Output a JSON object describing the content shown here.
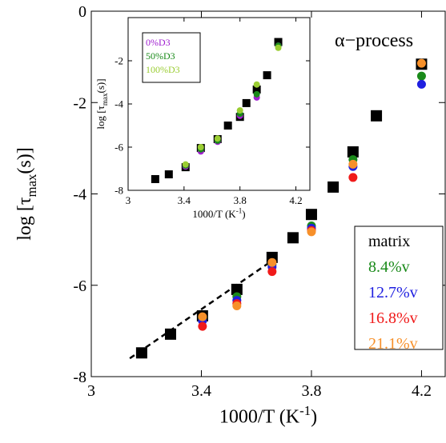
{
  "chart_data": [
    {
      "type": "scatter",
      "xlabel": [
        "1000/T (K",
        "-1",
        ")"
      ],
      "ylabel": [
        "log [τ",
        "max",
        "(s)]"
      ],
      "xlim": [
        3,
        4.286
      ],
      "ylim": [
        -8,
        0
      ],
      "xticks": [
        3,
        3.4,
        3.8,
        4.2
      ],
      "yticks": [
        0,
        -2,
        -4,
        -6,
        -8
      ],
      "annotation": "α−process",
      "legend_title": "matrix",
      "fit_line": {
        "x": [
          3.14,
          3.66
        ],
        "y": [
          -7.6,
          -5.45
        ]
      },
      "series": [
        {
          "name": "matrix",
          "color": "#000000",
          "marker": "square",
          "show_in_legend": false,
          "x": [
            3.183,
            3.288,
            3.404,
            3.529,
            3.657,
            3.733,
            3.8,
            3.879,
            3.951,
            4.036,
            4.2
          ],
          "values": [
            -7.48,
            -7.07,
            -6.67,
            -6.09,
            -5.39,
            -4.96,
            -4.45,
            -3.85,
            -3.08,
            -2.29,
            -1.16
          ]
        },
        {
          "name": "8.4%v",
          "color": "#1a8a1a",
          "marker": "circle",
          "x": [
            3.404,
            3.529,
            3.657,
            3.8,
            3.951,
            4.2
          ],
          "values": [
            -6.72,
            -6.25,
            -5.55,
            -4.7,
            -3.25,
            -1.42
          ]
        },
        {
          "name": "12.7%v",
          "color": "#1f1fe0",
          "marker": "circle",
          "x": [
            3.404,
            3.529,
            3.657,
            3.8,
            3.951,
            4.2
          ],
          "values": [
            -6.78,
            -6.33,
            -5.6,
            -4.75,
            -3.4,
            -1.6
          ]
        },
        {
          "name": "16.8%v",
          "color": "#f01a1a",
          "marker": "circle",
          "x": [
            3.404,
            3.529,
            3.657,
            3.8,
            3.951,
            4.2
          ],
          "values": [
            -6.9,
            -6.4,
            -5.7,
            -4.8,
            -3.64,
            null
          ]
        },
        {
          "name": "21.1%v",
          "color": "#f7902a",
          "marker": "circle",
          "x": [
            3.404,
            3.529,
            3.657,
            3.8,
            3.951,
            4.2
          ],
          "values": [
            -6.69,
            -6.45,
            -5.5,
            -4.83,
            -3.35,
            -1.14
          ]
        }
      ]
    },
    {
      "type": "scatter",
      "xlabel": [
        "1000/T (K",
        "-1",
        ")"
      ],
      "ylabel": [
        "log [τ",
        "max",
        "(s)]"
      ],
      "xlim": [
        3,
        4.3
      ],
      "ylim": [
        -8,
        0
      ],
      "xticks": [
        3,
        3.4,
        3.8,
        4.2
      ],
      "yticks": [
        -2,
        -4,
        -6,
        -8
      ],
      "series": [
        {
          "name": "matrix",
          "color": "#000000",
          "marker": "square",
          "show_in_legend": false,
          "x": [
            3.194,
            3.291,
            3.411,
            3.52,
            3.64,
            3.714,
            3.8,
            3.846,
            3.92,
            3.994,
            4.074
          ],
          "values": [
            -7.48,
            -7.26,
            -6.93,
            -6.04,
            -5.63,
            -5.0,
            -4.6,
            -3.96,
            -3.33,
            -2.67,
            -1.13
          ]
        },
        {
          "name": "0%D3",
          "color": "#a020d0",
          "marker": "circle",
          "x": [
            3.411,
            3.52,
            3.64,
            3.8,
            3.92,
            4.074
          ],
          "values": [
            -6.9,
            -6.2,
            -5.75,
            -4.55,
            -3.7,
            -1.3
          ]
        },
        {
          "name": "50%D3",
          "color": "#1a8a1a",
          "marker": "circle",
          "x": [
            3.411,
            3.52,
            3.64,
            3.8,
            3.92,
            4.074
          ],
          "values": [
            -6.85,
            -6.1,
            -5.7,
            -4.45,
            -3.55,
            -1.3
          ]
        },
        {
          "name": "100%D3",
          "color": "#9acd32",
          "marker": "circle",
          "x": [
            3.411,
            3.52,
            3.64,
            3.8,
            3.92,
            4.074
          ],
          "values": [
            -6.8,
            -6.0,
            -5.6,
            -4.3,
            -3.1,
            -1.4
          ]
        }
      ]
    }
  ]
}
